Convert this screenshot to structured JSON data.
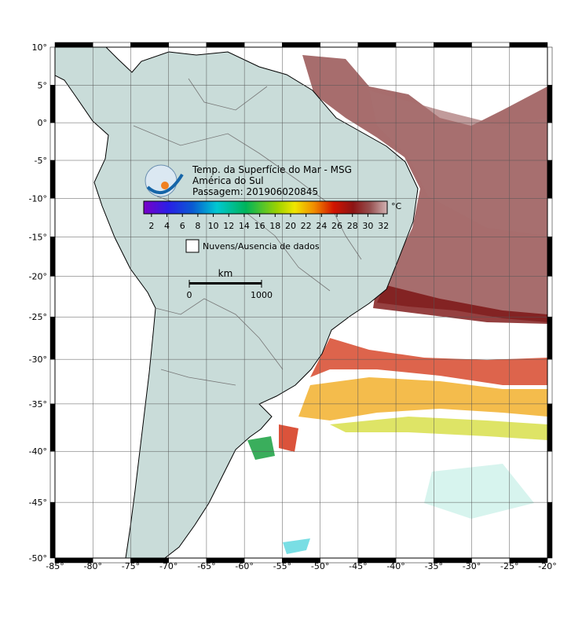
{
  "map": {
    "title_lines": [
      "Temp. da Superfície do Mar - MSG",
      "América do Sul",
      "Passagem: 201906020845"
    ],
    "xlim": [
      -85,
      -20
    ],
    "ylim": [
      -50,
      10
    ],
    "xticks": [
      {
        "value": -85,
        "label": "-85°"
      },
      {
        "value": -80,
        "label": "-80°"
      },
      {
        "value": -75,
        "label": "-75°"
      },
      {
        "value": -70,
        "label": "-70°"
      },
      {
        "value": -65,
        "label": "-65°"
      },
      {
        "value": -60,
        "label": "-60°"
      },
      {
        "value": -55,
        "label": "-55°"
      },
      {
        "value": -50,
        "label": "-50°"
      },
      {
        "value": -45,
        "label": "-45°"
      },
      {
        "value": -40,
        "label": "-40°"
      },
      {
        "value": -35,
        "label": "-35°"
      },
      {
        "value": -30,
        "label": "-30°"
      },
      {
        "value": -25,
        "label": "-25°"
      },
      {
        "value": -20,
        "label": "-20°"
      }
    ],
    "yticks": [
      {
        "value": 10,
        "label": "10°"
      },
      {
        "value": 5,
        "label": "5°"
      },
      {
        "value": 0,
        "label": "0°"
      },
      {
        "value": -5,
        "label": "-5°"
      },
      {
        "value": -10,
        "label": "-10°"
      },
      {
        "value": -15,
        "label": "-15°"
      },
      {
        "value": -20,
        "label": "-20°"
      },
      {
        "value": -25,
        "label": "-25°"
      },
      {
        "value": -30,
        "label": "-30°"
      },
      {
        "value": -35,
        "label": "-35°"
      },
      {
        "value": -40,
        "label": "-40°"
      },
      {
        "value": -45,
        "label": "-45°"
      },
      {
        "value": -50,
        "label": "-50°"
      }
    ],
    "grid": true,
    "colorbar": {
      "lim": [
        1,
        32.5
      ],
      "ticks": [
        2,
        4,
        6,
        8,
        10,
        12,
        14,
        16,
        18,
        20,
        22,
        24,
        26,
        28,
        30,
        32
      ],
      "unit": "°C"
    },
    "legend": {
      "label": "Nuvens/Ausencia de dados"
    },
    "scale_bar": {
      "unit": "km",
      "ticks": [
        0,
        1000
      ]
    }
  }
}
